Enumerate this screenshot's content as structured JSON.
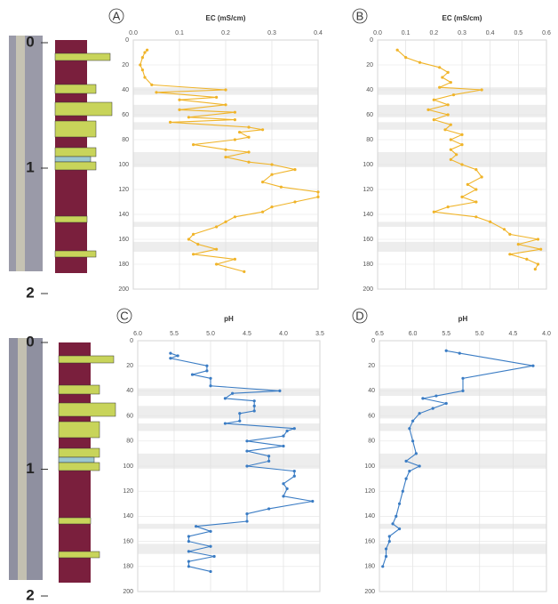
{
  "chart_data": [
    {
      "type": "line",
      "label": "A",
      "title": "EC (mS/cm)",
      "color": "#f0b429",
      "grid": true,
      "xlim": [
        0,
        0.4
      ],
      "xticks": [
        {
          "value": 0,
          "label": "0.0"
        },
        0.1,
        0.2,
        0.3,
        0.4
      ],
      "ylim": [
        0,
        200
      ],
      "yticks": [
        0,
        20,
        40,
        60,
        80,
        100,
        120,
        140,
        160,
        180,
        200
      ],
      "depth": [
        8,
        10,
        14,
        20,
        24,
        30,
        36,
        40,
        42,
        46,
        48,
        52,
        56,
        58,
        62,
        64,
        66,
        70,
        72,
        74,
        78,
        80,
        84,
        88,
        90,
        94,
        98,
        100,
        104,
        108,
        114,
        118,
        122,
        126,
        130,
        134,
        138,
        142,
        146,
        150,
        156,
        160,
        164,
        168,
        172,
        176,
        180,
        186
      ],
      "values": [
        0.03,
        0.025,
        0.02,
        0.015,
        0.02,
        0.025,
        0.04,
        0.2,
        0.05,
        0.18,
        0.1,
        0.2,
        0.1,
        0.22,
        0.12,
        0.22,
        0.08,
        0.25,
        0.28,
        0.23,
        0.25,
        0.22,
        0.13,
        0.2,
        0.25,
        0.2,
        0.25,
        0.3,
        0.35,
        0.3,
        0.28,
        0.32,
        0.4,
        0.4,
        0.35,
        0.3,
        0.28,
        0.22,
        0.2,
        0.18,
        0.13,
        0.12,
        0.14,
        0.18,
        0.13,
        0.22,
        0.18,
        0.24
      ]
    },
    {
      "type": "line",
      "label": "B",
      "title": "EC (mS/cm)",
      "color": "#f0b429",
      "grid": true,
      "xlim": [
        0,
        0.6
      ],
      "xticks": [
        {
          "value": 0,
          "label": "0.0"
        },
        0.1,
        0.2,
        0.3,
        0.4,
        0.5,
        0.6
      ],
      "ylim": [
        0,
        200
      ],
      "yticks": [
        0,
        20,
        40,
        60,
        80,
        100,
        120,
        140,
        160,
        180,
        200
      ],
      "depth": [
        8,
        14,
        18,
        22,
        26,
        30,
        34,
        38,
        40,
        44,
        48,
        52,
        56,
        60,
        64,
        68,
        72,
        76,
        80,
        84,
        88,
        92,
        96,
        100,
        104,
        110,
        116,
        120,
        126,
        130,
        134,
        138,
        142,
        146,
        152,
        156,
        160,
        164,
        168,
        172,
        176,
        180,
        184
      ],
      "values": [
        0.07,
        0.1,
        0.15,
        0.22,
        0.25,
        0.23,
        0.26,
        0.22,
        0.37,
        0.27,
        0.2,
        0.25,
        0.18,
        0.25,
        0.2,
        0.26,
        0.24,
        0.3,
        0.26,
        0.3,
        0.26,
        0.28,
        0.26,
        0.3,
        0.35,
        0.37,
        0.32,
        0.35,
        0.3,
        0.35,
        0.25,
        0.2,
        0.35,
        0.4,
        0.45,
        0.47,
        0.57,
        0.5,
        0.58,
        0.47,
        0.53,
        0.57,
        0.56
      ]
    },
    {
      "type": "line",
      "label": "C",
      "title": "pH",
      "color": "#3a7cc4",
      "grid": true,
      "xlim": [
        6,
        3.5
      ],
      "xticks": [
        {
          "value": 6,
          "label": "6.0"
        },
        5.5,
        {
          "value": 5,
          "label": "5.0"
        },
        4.5,
        {
          "value": 4,
          "label": "4.0"
        },
        3.5
      ],
      "ylim": [
        0,
        200
      ],
      "yticks": [
        0,
        20,
        40,
        60,
        80,
        100,
        120,
        140,
        160,
        180,
        200
      ],
      "depth": [
        10,
        12,
        14,
        20,
        24,
        27,
        30,
        36,
        40,
        42,
        46,
        48,
        52,
        56,
        58,
        64,
        66,
        70,
        72,
        76,
        80,
        84,
        88,
        92,
        96,
        100,
        104,
        108,
        114,
        118,
        124,
        128,
        134,
        138,
        144,
        148,
        152,
        156,
        160,
        164,
        168,
        172,
        176,
        180,
        184
      ],
      "values": [
        5.55,
        5.45,
        5.55,
        5.05,
        5.05,
        5.25,
        5.0,
        5.0,
        4.05,
        4.7,
        4.8,
        4.4,
        4.4,
        4.4,
        4.6,
        4.6,
        4.8,
        3.85,
        3.95,
        4.0,
        4.5,
        4.0,
        4.5,
        4.2,
        4.2,
        4.5,
        3.85,
        3.85,
        4.0,
        3.95,
        4.0,
        3.6,
        4.2,
        4.5,
        4.5,
        5.2,
        5.0,
        5.3,
        5.3,
        5.0,
        5.3,
        4.95,
        5.3,
        5.3,
        5.0
      ]
    },
    {
      "type": "line",
      "label": "D",
      "title": "pH",
      "color": "#3a7cc4",
      "grid": true,
      "xlim": [
        6.5,
        4
      ],
      "xticks": [
        6.5,
        {
          "value": 6,
          "label": "6.0"
        },
        5.5,
        {
          "value": 5,
          "label": "5.0"
        },
        4.5,
        {
          "value": 4,
          "label": "4.0"
        }
      ],
      "ylim": [
        0,
        200
      ],
      "yticks": [
        0,
        20,
        40,
        60,
        80,
        100,
        120,
        140,
        160,
        180,
        200
      ],
      "depth": [
        8,
        10,
        20,
        30,
        40,
        44,
        46,
        50,
        54,
        58,
        64,
        70,
        80,
        90,
        96,
        100,
        104,
        110,
        120,
        130,
        140,
        146,
        150,
        156,
        160,
        166,
        172,
        180
      ],
      "values": [
        5.5,
        5.3,
        4.2,
        5.25,
        5.25,
        5.65,
        5.85,
        5.5,
        5.7,
        5.9,
        6.0,
        6.05,
        6.0,
        5.95,
        6.1,
        5.9,
        6.05,
        6.1,
        6.15,
        6.2,
        6.25,
        6.3,
        6.2,
        6.35,
        6.35,
        6.4,
        6.4,
        6.45
      ]
    }
  ],
  "cores": [
    {
      "ticks": [
        0,
        1,
        2
      ]
    },
    {
      "ticks": [
        0,
        1,
        2
      ]
    }
  ]
}
